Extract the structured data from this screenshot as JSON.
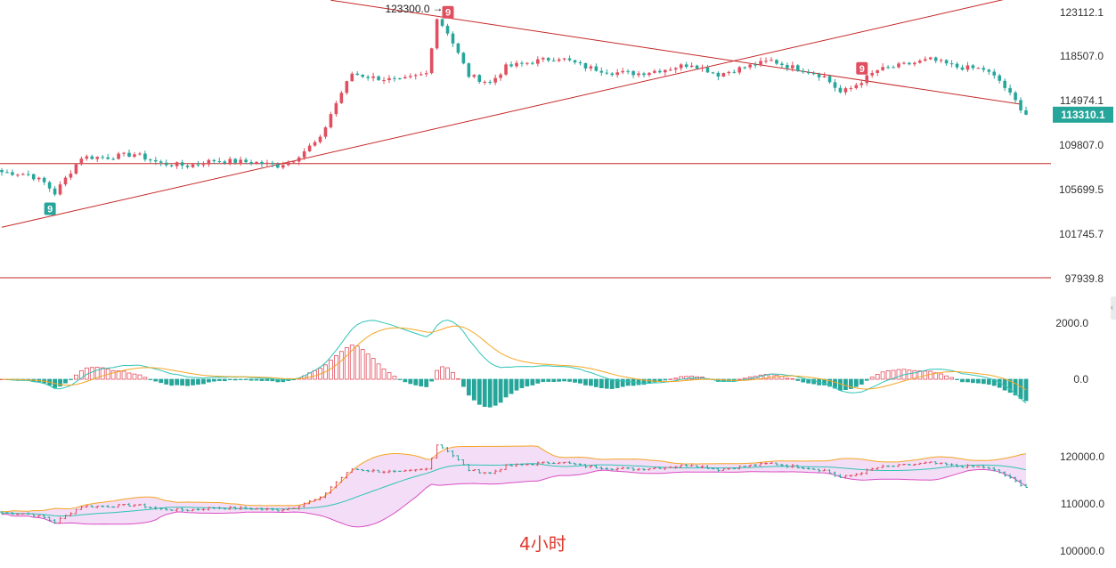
{
  "chart_data": [
    {
      "panel": "price",
      "type": "candlestick",
      "y_ticks": [
        "123112.1",
        "118507.0",
        "114974.1",
        "109807.0",
        "105699.5",
        "101745.7",
        "97939.8"
      ],
      "ylim": [
        97939.8,
        123112.1
      ],
      "current_price_label": "113310.1",
      "high_annotation": "123300.0",
      "markers": [
        {
          "label": "9",
          "kind": "buy",
          "color": "#26a69a"
        },
        {
          "label": "9",
          "kind": "sell",
          "color": "#e04f5f"
        },
        {
          "label": "9",
          "kind": "sell",
          "color": "#e04f5f"
        }
      ],
      "horizontal_levels": [
        108700,
        97939.8
      ],
      "trendlines": [
        {
          "name": "descending resistance",
          "from": {
            "bar": 62,
            "price": 124100
          },
          "to": {
            "bar": 192,
            "price": 114300
          }
        },
        {
          "name": "ascending support",
          "from": {
            "bar": 0,
            "price": 102700
          },
          "to": {
            "bar": 190,
            "price": 124300
          }
        }
      ],
      "candle_colors": {
        "up": "#e04f5f",
        "down": "#26a69a"
      }
    },
    {
      "panel": "macd",
      "type": "histogram+line",
      "y_ticks": [
        "2000.0",
        "0.0"
      ],
      "ylim": [
        -1500,
        2400
      ],
      "series": [
        {
          "name": "DIF",
          "color": "#2ec4b6"
        },
        {
          "name": "DEA",
          "color": "#f5a623"
        }
      ]
    },
    {
      "panel": "bollinger",
      "type": "ohlc+band",
      "y_ticks": [
        "120000.0",
        "110000.0",
        "100000.0"
      ],
      "ylim": [
        98000,
        124000
      ],
      "band_fill": "#f3d9f5",
      "series": [
        {
          "name": "upper",
          "color": "#f5a623"
        },
        {
          "name": "middle",
          "color": "#2ec4b6"
        },
        {
          "name": "lower",
          "color": "#d94fc4"
        }
      ]
    }
  ],
  "caption": "4小时",
  "colors": {
    "up": "#e04f5f",
    "down": "#26a69a",
    "levels": "#c62828",
    "price_tag": "#26a69a"
  }
}
